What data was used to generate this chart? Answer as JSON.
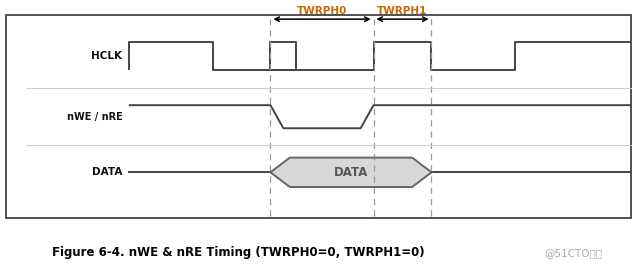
{
  "title": "Figure 6-4. nWE & nRE Timing (TWRPH0=0, TWRPH1=0)",
  "watermark": "@51CTO博客",
  "label_HCLK": "HCLK",
  "label_nWE": "nWE / nRE",
  "label_DATA": "DATA",
  "label_TWRPH0": "TWRPH0",
  "label_TWRPH1": "TWRPH1",
  "bg_color": "#ffffff",
  "border_color": "#333333",
  "signal_color": "#444444",
  "arrow_color": "#000000",
  "twrph_color": "#cc6600",
  "data_fill_color": "#d8d8d8",
  "data_box_color": "#666666",
  "title_color": "#000000",
  "dashed_color": "#999999",
  "sep_color": "#cccccc",
  "fig_width": 6.44,
  "fig_height": 2.69,
  "dpi": 100
}
